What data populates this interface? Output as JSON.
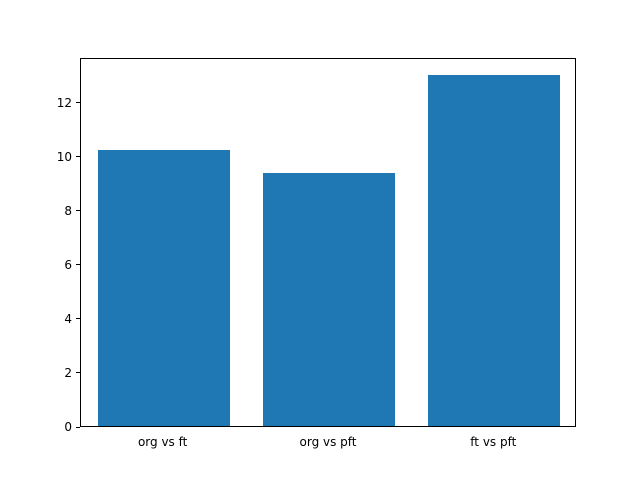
{
  "chart_data": {
    "type": "bar",
    "categories": [
      "org vs ft",
      "org vs pft",
      "ft vs pft"
    ],
    "values": [
      10.2,
      9.35,
      13.0
    ],
    "title": "",
    "xlabel": "",
    "ylabel": "",
    "ylim": [
      0,
      13.65
    ],
    "yticks": [
      0,
      2,
      4,
      6,
      8,
      10,
      12
    ],
    "bar_color": "#1f77b4",
    "background_color": "#ffffff",
    "axis_color": "#000000",
    "bar_width_fraction": 0.8,
    "grid": false,
    "legend": "none"
  }
}
